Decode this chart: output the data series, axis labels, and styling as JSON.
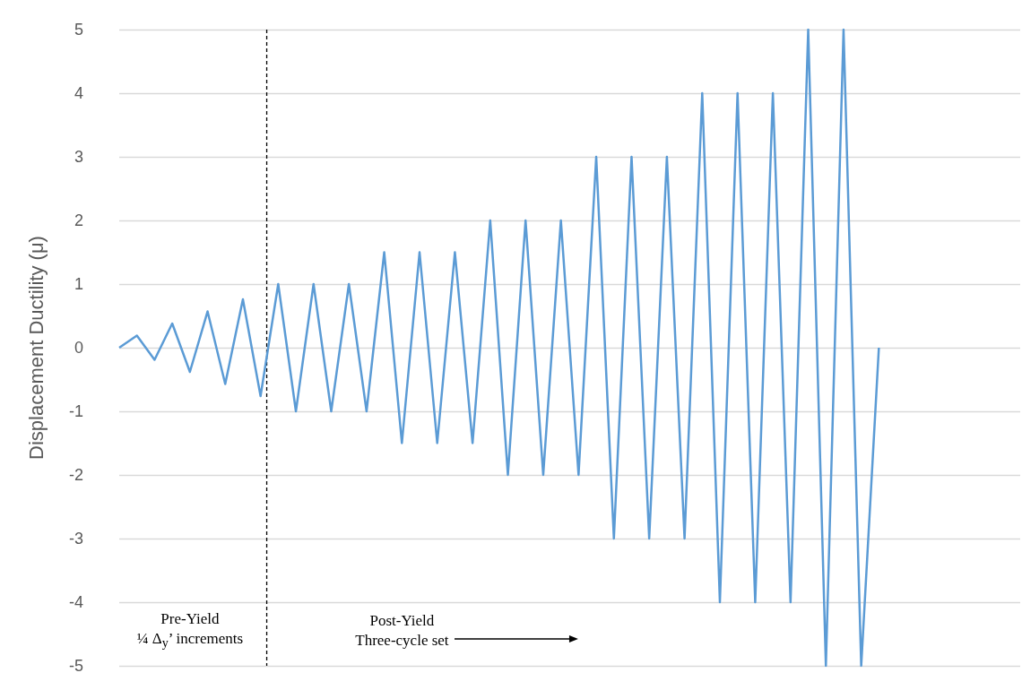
{
  "chart_data": {
    "type": "line",
    "ylabel": "Displacement Ductility (μ)",
    "categories": [
      null,
      null,
      null,
      null,
      null,
      null,
      null,
      null,
      null,
      null,
      null,
      null,
      null,
      null,
      null,
      null,
      null,
      null,
      null,
      null,
      null,
      null,
      null,
      null,
      null,
      null,
      null,
      null,
      null,
      null,
      null,
      null,
      null,
      null,
      null,
      null,
      null,
      null,
      null,
      null,
      null,
      null,
      null,
      null,
      null,
      null,
      null,
      null,
      null,
      null,
      null,
      null
    ],
    "values": [
      0,
      0.19,
      -0.19,
      0.38,
      -0.38,
      0.57,
      -0.57,
      0.76,
      -0.76,
      1,
      -1,
      1,
      -1,
      1,
      -1,
      1.5,
      -1.5,
      1.5,
      -1.5,
      1.5,
      -1.5,
      2,
      -2,
      2,
      -2,
      2,
      -2,
      3,
      -3,
      3,
      -3,
      3,
      -3,
      4,
      -4,
      4,
      -4,
      4,
      -4,
      5,
      -5,
      5,
      -5,
      0,
      null,
      null,
      null,
      null,
      null,
      null,
      null,
      null
    ],
    "color": "#5b9bd5",
    "ylim": [
      -5,
      5
    ],
    "yticks": [
      -5,
      -4,
      -3,
      -2,
      -1,
      0,
      1,
      2,
      3,
      4,
      5
    ],
    "grid": "y",
    "tick_labels": "y",
    "marker": "none",
    "line_style": "solid",
    "annotations": [
      "Pre-Yield\n¼ Δ$_{y}$’ increments",
      "Post-Yield\nThree-cycle set"
    ]
  }
}
